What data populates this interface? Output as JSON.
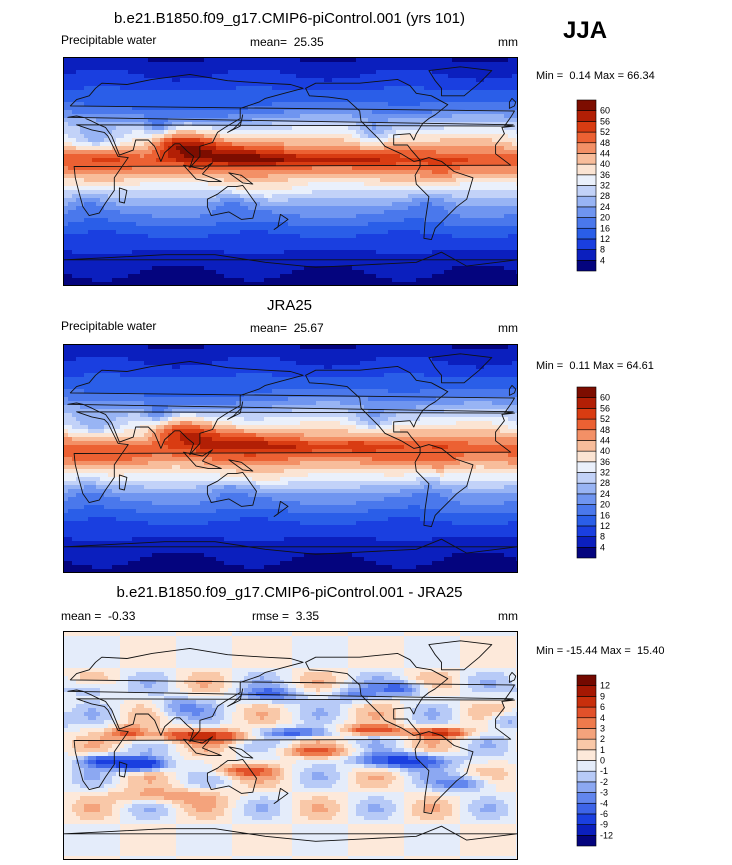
{
  "season": "JJA",
  "panels": [
    {
      "id": "model",
      "title": "b.e21.B1850.f09_g17.CMIP6-piControl.001 (yrs 101)",
      "left_label": "Precipitable water",
      "stat_label": "mean=",
      "stat_value": "25.35",
      "units": "mm",
      "min_label": "Min =",
      "min_value": "0.14",
      "max_label": "Max =",
      "max_value": "66.34"
    },
    {
      "id": "obs",
      "title": "JRA25",
      "left_label": "Precipitable water",
      "stat_label": "mean=",
      "stat_value": "25.67",
      "units": "mm",
      "min_label": "Min =",
      "min_value": "0.11",
      "max_label": "Max =",
      "max_value": "64.61"
    },
    {
      "id": "diff",
      "title": "b.e21.B1850.f09_g17.CMIP6-piControl.001 - JRA25",
      "left_label": "mean =",
      "left_value": "-0.33",
      "stat_label": "rmse =",
      "stat_value": "3.35",
      "units": "mm",
      "min_label": "Min =",
      "min_value": "-15.44",
      "max_label": "Max =",
      "max_value": "15.40"
    }
  ],
  "chart_data": [
    {
      "type": "heatmap",
      "title": "b.e21.B1850.f09_g17.CMIP6-piControl.001 (yrs 101)",
      "variable": "Precipitable water",
      "units": "mm",
      "mean": 25.35,
      "min": 0.14,
      "max": 66.34,
      "zonal_profile": {
        "lat": [
          90,
          70,
          50,
          30,
          10,
          0,
          -10,
          -30,
          -50,
          -70,
          -90
        ],
        "value": [
          4,
          10,
          18,
          36,
          52,
          46,
          36,
          22,
          12,
          6,
          2
        ]
      },
      "colorbar_levels": [
        4,
        8,
        12,
        16,
        20,
        24,
        28,
        32,
        36,
        40,
        44,
        48,
        52,
        56,
        60
      ],
      "colorbar_colors": [
        "#04047e",
        "#0b1fbe",
        "#1a3fe0",
        "#2a5ee8",
        "#4a78ec",
        "#6f95f0",
        "#98b4f4",
        "#c2d2f8",
        "#eaf0fb",
        "#fbe4d3",
        "#f8bd9b",
        "#f39066",
        "#ec6133",
        "#d93c12",
        "#b21f05",
        "#7d0d00"
      ]
    },
    {
      "type": "heatmap",
      "title": "JRA25",
      "variable": "Precipitable water",
      "units": "mm",
      "mean": 25.67,
      "min": 0.11,
      "max": 64.61,
      "zonal_profile": {
        "lat": [
          90,
          70,
          50,
          30,
          10,
          0,
          -10,
          -30,
          -50,
          -70,
          -90
        ],
        "value": [
          4,
          10,
          18,
          34,
          50,
          48,
          38,
          22,
          12,
          6,
          2
        ]
      },
      "colorbar_levels": [
        4,
        8,
        12,
        16,
        20,
        24,
        28,
        32,
        36,
        40,
        44,
        48,
        52,
        56,
        60
      ],
      "colorbar_colors": [
        "#04047e",
        "#0b1fbe",
        "#1a3fe0",
        "#2a5ee8",
        "#4a78ec",
        "#6f95f0",
        "#98b4f4",
        "#c2d2f8",
        "#eaf0fb",
        "#fbe4d3",
        "#f8bd9b",
        "#f39066",
        "#ec6133",
        "#d93c12",
        "#b21f05",
        "#7d0d00"
      ]
    },
    {
      "type": "heatmap",
      "title": "b.e21.B1850.f09_g17.CMIP6-piControl.001 - JRA25",
      "units": "mm",
      "mean": -0.33,
      "rmse": 3.35,
      "min": -15.44,
      "max": 15.4,
      "colorbar_levels": [
        -12,
        -9,
        -6,
        -4,
        -3,
        -2,
        -1,
        0,
        1,
        2,
        3,
        4,
        6,
        9,
        12
      ],
      "colorbar_colors": [
        "#04047e",
        "#0b1fbe",
        "#1a3fe0",
        "#3d64e8",
        "#6286ee",
        "#8ca8f2",
        "#b7caf7",
        "#e4ecfa",
        "#fde9da",
        "#f9c8a8",
        "#f4a37c",
        "#ee7a4c",
        "#e2512a",
        "#c82f0c",
        "#a51803",
        "#740900"
      ]
    }
  ]
}
